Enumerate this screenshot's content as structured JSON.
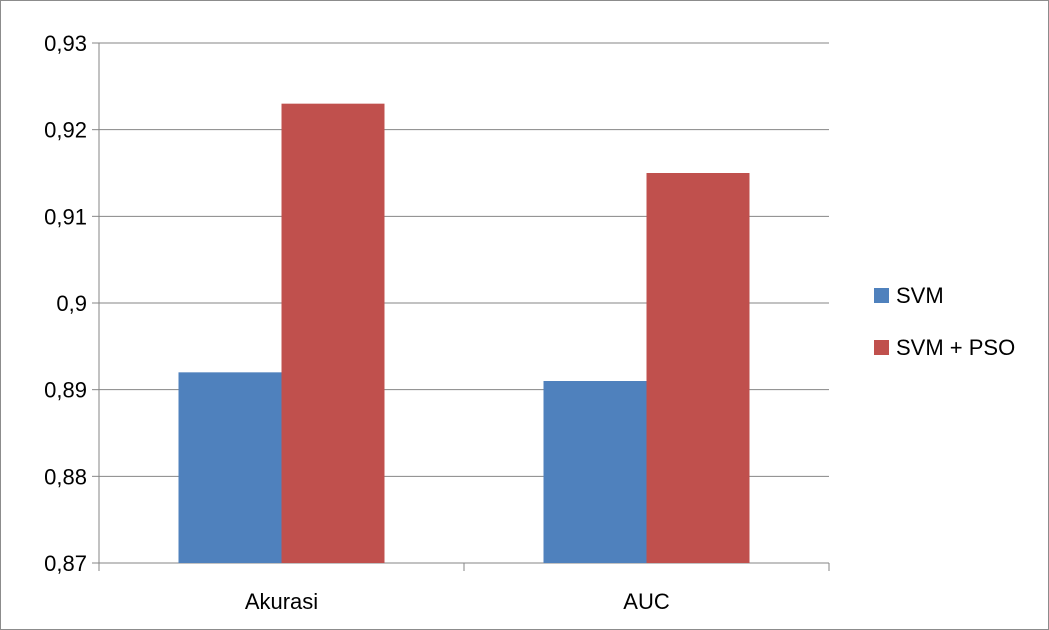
{
  "chart_data": {
    "type": "bar",
    "categories": [
      "Akurasi",
      "AUC"
    ],
    "series": [
      {
        "name": "SVM",
        "values": [
          0.892,
          0.891
        ],
        "color": "#4f81bd"
      },
      {
        "name": "SVM + PSO",
        "values": [
          0.923,
          0.915
        ],
        "color": "#c0504d"
      }
    ],
    "y_ticks": [
      "0,87",
      "0,88",
      "0,89",
      "0,9",
      "0,91",
      "0,92",
      "0,93"
    ],
    "ylim": [
      0.87,
      0.93
    ],
    "grid": true,
    "legend_position": "right",
    "title": "",
    "xlabel": "",
    "ylabel": ""
  }
}
